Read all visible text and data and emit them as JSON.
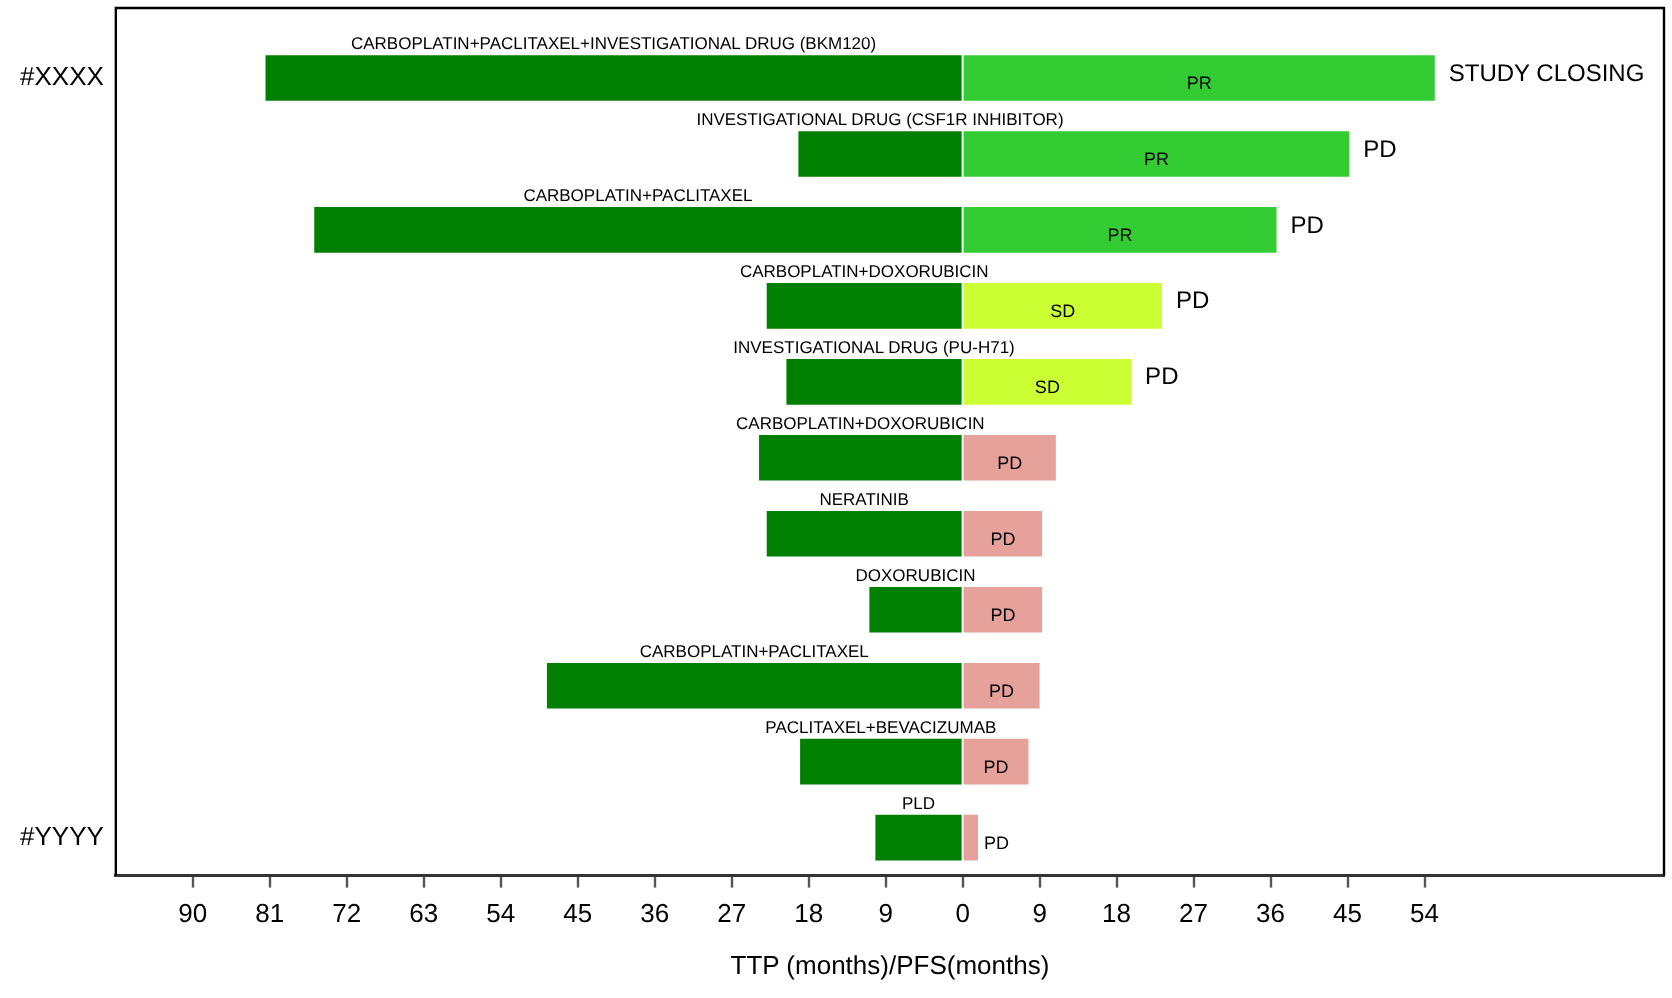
{
  "chart_data": {
    "type": "bar",
    "orientation": "horizontal",
    "stacked": true,
    "xlabel": "TTP (months)/PFS(months)",
    "categories": [
      "#XXXX",
      null,
      null,
      null,
      null,
      null,
      null,
      null,
      null,
      null,
      "#YYYY"
    ],
    "series": [
      {
        "color": "#008000",
        "values": [
          -81.5,
          -19.2,
          -75.8,
          -22.9,
          -20.6,
          -23.8,
          -22.9,
          -10.9,
          -48.6,
          -19,
          -10.2
        ],
        "value_labels": [
          "CARBOPLATIN+PACLITAXEL+INVESTIGATIONAL DRUG (BKM120)",
          "INVESTIGATIONAL DRUG (CSF1R INHIBITOR)",
          "CARBOPLATIN+PACLITAXEL",
          "CARBOPLATIN+DOXORUBICIN",
          "INVESTIGATIONAL DRUG (PU-H71)",
          "CARBOPLATIN+DOXORUBICIN",
          "NERATINIB",
          "DOXORUBICIN",
          "CARBOPLATIN+PACLITAXEL",
          "PACLITAXEL+BEVACIZUMAB",
          "PLD"
        ]
      },
      {
        "colors": [
          "#33cc33",
          "#33cc33",
          "#33cc33",
          "#ccff33",
          "#ccff33",
          "#e6a19a",
          "#e6a19a",
          "#e6a19a",
          "#e6a19a",
          "#e6a19a",
          "#e6a19a"
        ],
        "values": [
          55.2,
          45.2,
          36.7,
          23.3,
          19.7,
          10.9,
          9.3,
          9.3,
          9,
          7.7,
          1.8
        ],
        "value_labels": [
          "PR",
          "PR",
          "PR",
          "SD",
          "SD",
          "PD",
          "PD",
          "PD",
          "PD",
          "PD",
          "PD"
        ]
      }
    ],
    "annotations": [
      {
        "text": "STUDY CLOSING",
        "x": 55.2
      },
      {
        "text": "PD",
        "x": 45.2
      },
      {
        "text": "PD",
        "x": 36.7
      },
      {
        "text": "PD",
        "x": 23.3
      },
      {
        "text": "PD",
        "x": 19.7
      }
    ],
    "xlim": [
      -99,
      82
    ],
    "xticks": [
      {
        "value": -90,
        "label": "90"
      },
      {
        "value": -81,
        "label": "81"
      },
      {
        "value": -72,
        "label": "72"
      },
      {
        "value": -63,
        "label": "63"
      },
      {
        "value": -54,
        "label": "54"
      },
      {
        "value": -45,
        "label": "45"
      },
      {
        "value": -36,
        "label": "36"
      },
      {
        "value": -27,
        "label": "27"
      },
      {
        "value": -18,
        "label": "18"
      },
      {
        "value": -9,
        "label": "9"
      },
      0,
      9,
      18,
      27,
      36,
      45,
      54
    ],
    "legend": false,
    "grid": false
  }
}
